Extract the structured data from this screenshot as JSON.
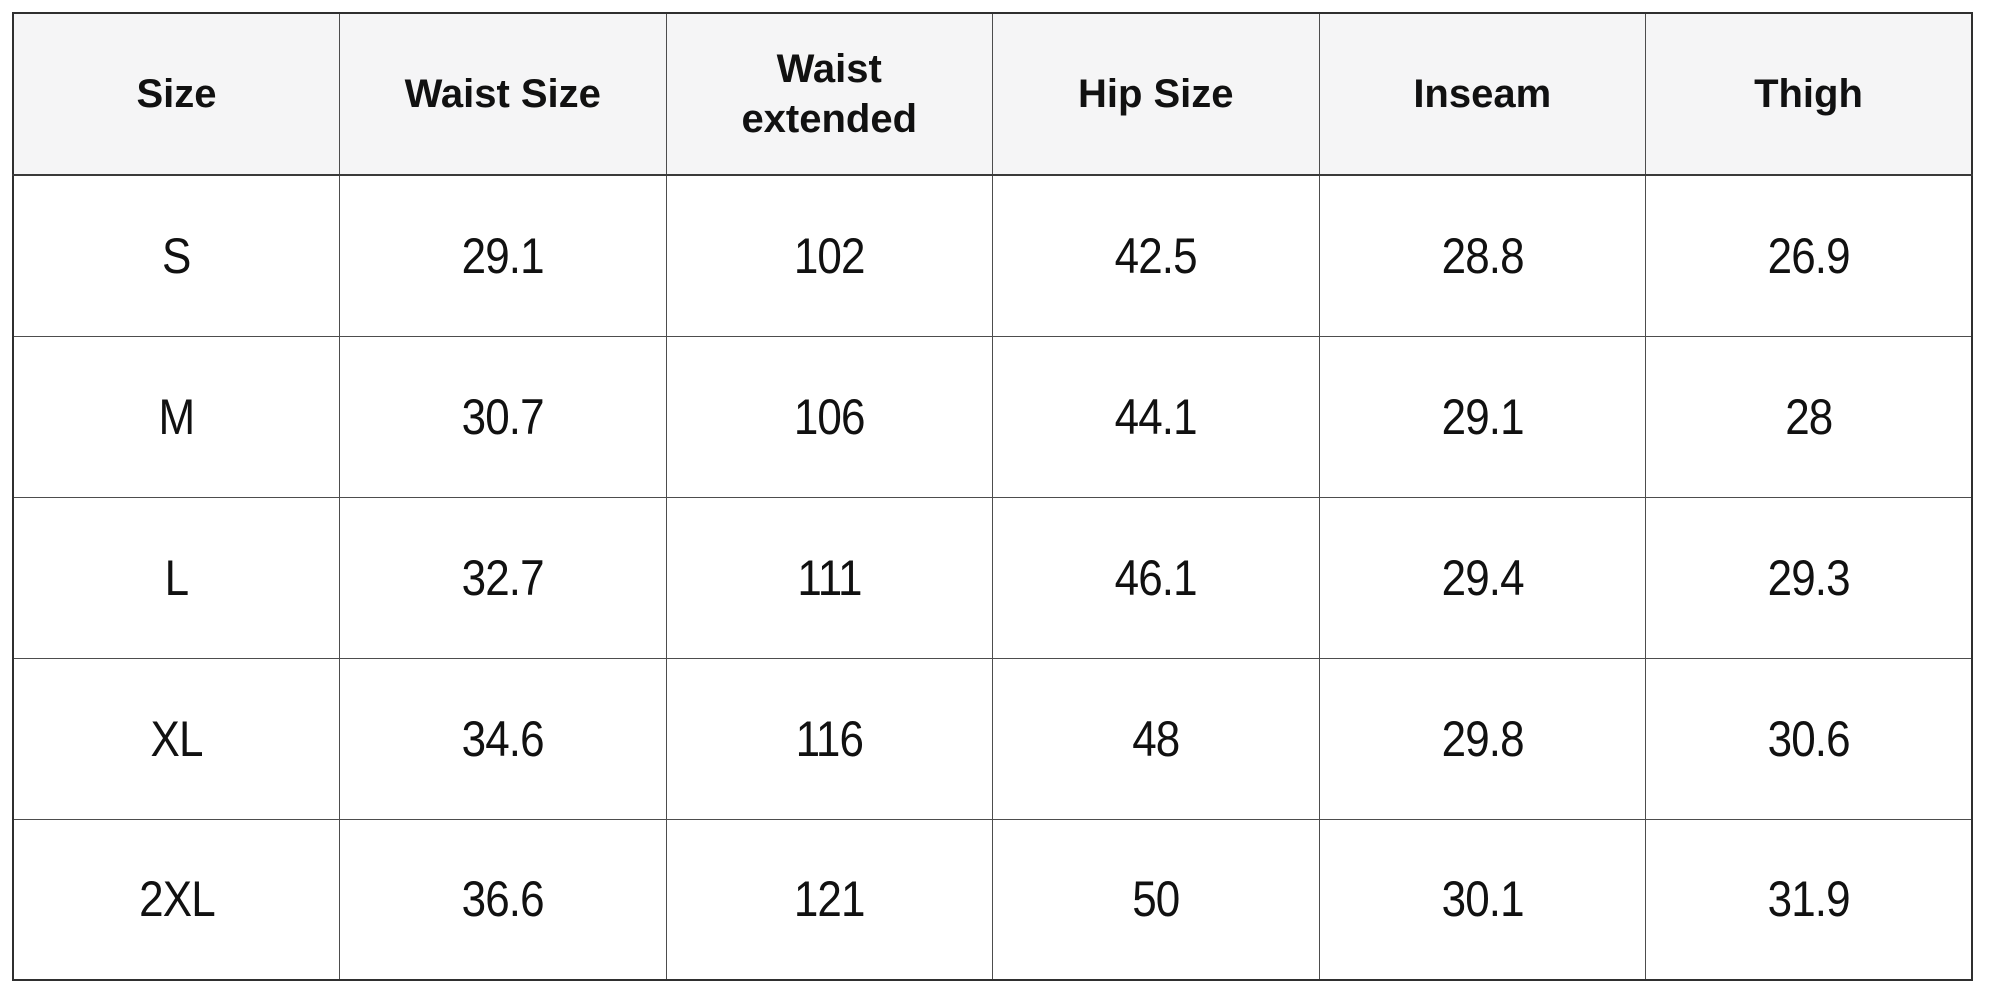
{
  "table": {
    "columns": [
      "Size",
      "Waist Size",
      "Waist extended",
      "Hip Size",
      "Inseam",
      "Thigh"
    ],
    "rows": [
      [
        "S",
        "29.1",
        "102",
        "42.5",
        "28.8",
        "26.9"
      ],
      [
        "M",
        "30.7",
        "106",
        "44.1",
        "29.1",
        "28"
      ],
      [
        "L",
        "32.7",
        "111",
        "46.1",
        "29.4",
        "29.3"
      ],
      [
        "XL",
        "34.6",
        "116",
        "48",
        "29.8",
        "30.6"
      ],
      [
        "2XL",
        "36.6",
        "121",
        "50",
        "30.1",
        "31.9"
      ]
    ]
  },
  "chart_data": {
    "type": "table",
    "title": "",
    "columns": [
      "Size",
      "Waist Size",
      "Waist extended",
      "Hip Size",
      "Inseam",
      "Thigh"
    ],
    "rows": [
      [
        "S",
        29.1,
        102,
        42.5,
        28.8,
        26.9
      ],
      [
        "M",
        30.7,
        106,
        44.1,
        29.1,
        28
      ],
      [
        "L",
        32.7,
        111,
        46.1,
        29.4,
        29.3
      ],
      [
        "XL",
        34.6,
        116,
        48,
        29.8,
        30.6
      ],
      [
        "2XL",
        36.6,
        121,
        50,
        30.1,
        31.9
      ]
    ]
  },
  "colors": {
    "header_bg": "#f5f5f6",
    "body_bg": "#ffffff",
    "border_outer": "#2f2f2f",
    "border_inner": "#4d4d4d",
    "text": "#111111"
  }
}
